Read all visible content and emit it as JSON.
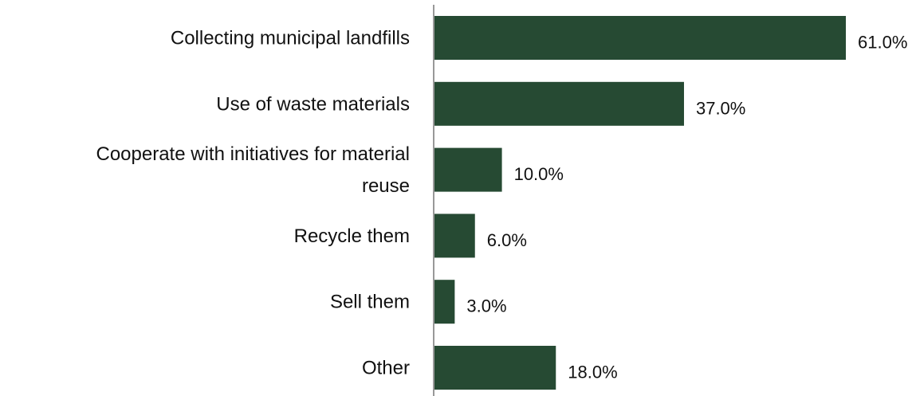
{
  "chart_data": {
    "type": "bar",
    "orientation": "horizontal",
    "categories": [
      "Collecting municipal landfills",
      "Use of waste materials",
      "Cooperate with initiatives for material reuse",
      "Recycle them",
      "Sell them",
      "Other"
    ],
    "category_lines": [
      [
        "Collecting municipal landfills"
      ],
      [
        "Use of waste materials"
      ],
      [
        "Cooperate with initiatives for material",
        "reuse"
      ],
      [
        "Recycle them"
      ],
      [
        "Sell them"
      ],
      [
        "Other"
      ]
    ],
    "values": [
      61.0,
      37.0,
      10.0,
      6.0,
      3.0,
      18.0
    ],
    "value_labels": [
      "61.0%",
      "37.0%",
      "10.0%",
      "6.0%",
      "3.0%",
      "18.0%"
    ],
    "unit": "%",
    "xlim": [
      0,
      61
    ],
    "bar_color": "#264A33",
    "axis_color": "#999999",
    "grid": false,
    "legend": "none",
    "title": "",
    "xlabel": "",
    "ylabel": ""
  }
}
